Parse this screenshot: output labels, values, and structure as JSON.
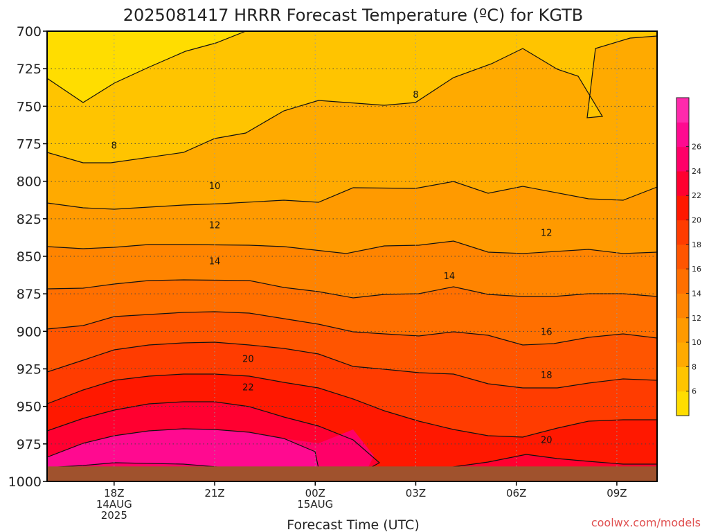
{
  "chart_data": {
    "type": "contour",
    "title": "2025081417 HRRR Forecast Temperature (ºC) for KGTB",
    "xlabel": "Forecast Time (UTC)",
    "ylabel": "",
    "y_ticks": [
      "700",
      "725",
      "750",
      "775",
      "800",
      "825",
      "850",
      "875",
      "900",
      "925",
      "950",
      "975",
      "1000"
    ],
    "y_range": [
      700,
      1000
    ],
    "y_inverted": true,
    "x_range_hours": [
      16.0,
      34.2
    ],
    "x_ticks": [
      {
        "hour": 18,
        "lines": [
          "18Z",
          "14AUG",
          "2025"
        ]
      },
      {
        "hour": 21,
        "lines": [
          "21Z"
        ]
      },
      {
        "hour": 24,
        "lines": [
          "00Z",
          "15AUG"
        ]
      },
      {
        "hour": 27,
        "lines": [
          "03Z"
        ]
      },
      {
        "hour": 30,
        "lines": [
          "06Z"
        ]
      },
      {
        "hour": 33,
        "lines": [
          "09Z"
        ]
      }
    ],
    "grid": true,
    "colorbar": {
      "ticks": [
        "6",
        "8",
        "10",
        "12",
        "14",
        "16",
        "18",
        "20",
        "22",
        "24",
        "26"
      ],
      "colors": [
        "#ffdd00",
        "#ffc400",
        "#ffaa00",
        "#ff9a00",
        "#ff8400",
        "#ff6f00",
        "#ff5500",
        "#ff3c00",
        "#ff1800",
        "#ff0030",
        "#ff0068",
        "#ff0a90",
        "#ff2aac"
      ]
    },
    "contour_levels": [
      8,
      10,
      12,
      14,
      16,
      18,
      20,
      22
    ],
    "contour_labels": [
      {
        "text": "8",
        "hour": 18.0,
        "p": 776
      },
      {
        "text": "8",
        "hour": 27.0,
        "p": 742
      },
      {
        "text": "10",
        "hour": 21.0,
        "p": 803
      },
      {
        "text": "12",
        "hour": 21.0,
        "p": 829
      },
      {
        "text": "12",
        "hour": 30.9,
        "p": 834
      },
      {
        "text": "14",
        "hour": 21.0,
        "p": 853
      },
      {
        "text": "14",
        "hour": 28.0,
        "p": 863
      },
      {
        "text": "16",
        "hour": 30.9,
        "p": 900
      },
      {
        "text": "18",
        "hour": 30.9,
        "p": 929
      },
      {
        "text": "20",
        "hour": 22.0,
        "p": 918
      },
      {
        "text": "20",
        "hour": 30.9,
        "p": 972
      },
      {
        "text": "22",
        "hour": 22.0,
        "p": 937
      }
    ],
    "ground_color": "#a0522d",
    "ground_top_p": 990
  },
  "credit": "coolwx.com/models"
}
